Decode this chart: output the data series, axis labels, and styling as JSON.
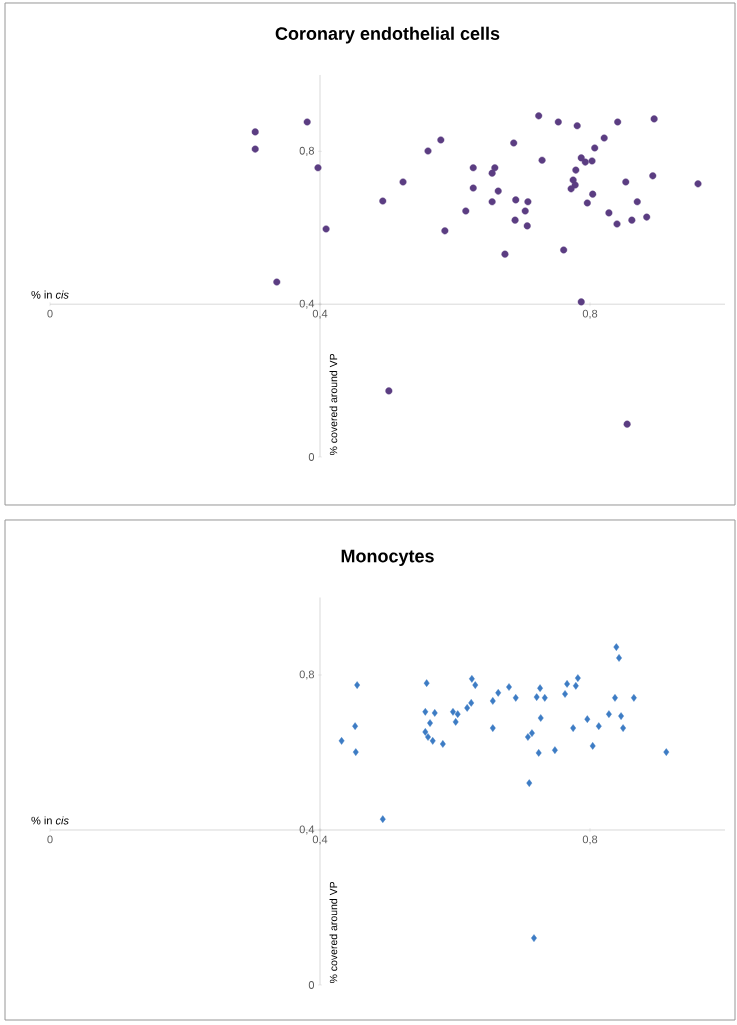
{
  "chart_data": [
    {
      "type": "scatter",
      "title": "Coronary endothelial cells",
      "xlabel": "% in *cis*",
      "ylabel": "% covered around VP",
      "color": "#5b3d82",
      "marker": "circle",
      "x": [
        0.304,
        0.304,
        0.381,
        0.397,
        0.409,
        0.336,
        0.502,
        0.493,
        0.523,
        0.56,
        0.579,
        0.585,
        0.627,
        0.627,
        0.616,
        0.655,
        0.659,
        0.655,
        0.664,
        0.674,
        0.687,
        0.69,
        0.708,
        0.704,
        0.689,
        0.707,
        0.724,
        0.729,
        0.753,
        0.761,
        0.781,
        0.787,
        0.787,
        0.803,
        0.793,
        0.779,
        0.775,
        0.778,
        0.772,
        0.807,
        0.821,
        0.804,
        0.796,
        0.828,
        0.84,
        0.841,
        0.853,
        0.87,
        0.862,
        0.884,
        0.893,
        0.895,
        0.96,
        0.855
      ],
      "values": [
        0.851,
        0.806,
        0.877,
        0.757,
        0.597,
        0.458,
        0.173,
        0.67,
        0.72,
        0.801,
        0.83,
        0.592,
        0.757,
        0.704,
        0.644,
        0.743,
        0.757,
        0.668,
        0.696,
        0.531,
        0.822,
        0.673,
        0.668,
        0.644,
        0.62,
        0.605,
        0.893,
        0.777,
        0.877,
        0.542,
        0.867,
        0.406,
        0.783,
        0.775,
        0.772,
        0.751,
        0.725,
        0.712,
        0.702,
        0.809,
        0.835,
        0.688,
        0.665,
        0.639,
        0.61,
        0.877,
        0.72,
        0.668,
        0.62,
        0.628,
        0.736,
        0.885,
        0.715,
        0.086
      ],
      "xlim": [
        0,
        1
      ],
      "ylim": [
        0,
        1
      ],
      "xticks": [
        {
          "value": 0,
          "label": "0"
        },
        {
          "value": 0.4,
          "label": "0,4"
        },
        {
          "value": 0.8,
          "label": "0,8"
        }
      ],
      "yticks": [
        {
          "value": 0,
          "label": "0"
        },
        {
          "value": 0.4,
          "label": "0,4"
        },
        {
          "value": 0.8,
          "label": "0,8"
        }
      ]
    },
    {
      "type": "scatter",
      "title": "Monocytes",
      "xlabel": "% in *cis*",
      "ylabel": "% covered around VP",
      "color": "#3d7cc4",
      "marker": "diamond",
      "x": [
        0.432,
        0.455,
        0.452,
        0.453,
        0.493,
        0.558,
        0.556,
        0.57,
        0.563,
        0.556,
        0.56,
        0.567,
        0.582,
        0.597,
        0.604,
        0.601,
        0.618,
        0.624,
        0.625,
        0.63,
        0.656,
        0.664,
        0.656,
        0.68,
        0.69,
        0.708,
        0.714,
        0.71,
        0.724,
        0.727,
        0.721,
        0.726,
        0.733,
        0.717,
        0.748,
        0.763,
        0.766,
        0.779,
        0.782,
        0.775,
        0.796,
        0.804,
        0.813,
        0.828,
        0.837,
        0.839,
        0.843,
        0.846,
        0.849,
        0.865,
        0.913
      ],
      "values": [
        0.63,
        0.774,
        0.668,
        0.601,
        0.428,
        0.779,
        0.705,
        0.702,
        0.676,
        0.653,
        0.64,
        0.63,
        0.622,
        0.705,
        0.699,
        0.679,
        0.715,
        0.728,
        0.79,
        0.774,
        0.733,
        0.754,
        0.663,
        0.769,
        0.741,
        0.64,
        0.65,
        0.521,
        0.599,
        0.689,
        0.743,
        0.766,
        0.741,
        0.121,
        0.606,
        0.751,
        0.777,
        0.772,
        0.792,
        0.663,
        0.686,
        0.617,
        0.668,
        0.699,
        0.741,
        0.872,
        0.844,
        0.694,
        0.663,
        0.741,
        0.601
      ],
      "xlim": [
        0,
        1
      ],
      "ylim": [
        0,
        1
      ],
      "xticks": [
        {
          "value": 0,
          "label": "0"
        },
        {
          "value": 0.4,
          "label": "0,4"
        },
        {
          "value": 0.8,
          "label": "0,8"
        }
      ],
      "yticks": [
        {
          "value": 0,
          "label": "0"
        },
        {
          "value": 0.4,
          "label": "0,4"
        },
        {
          "value": 0.8,
          "label": "0,8"
        }
      ]
    }
  ]
}
